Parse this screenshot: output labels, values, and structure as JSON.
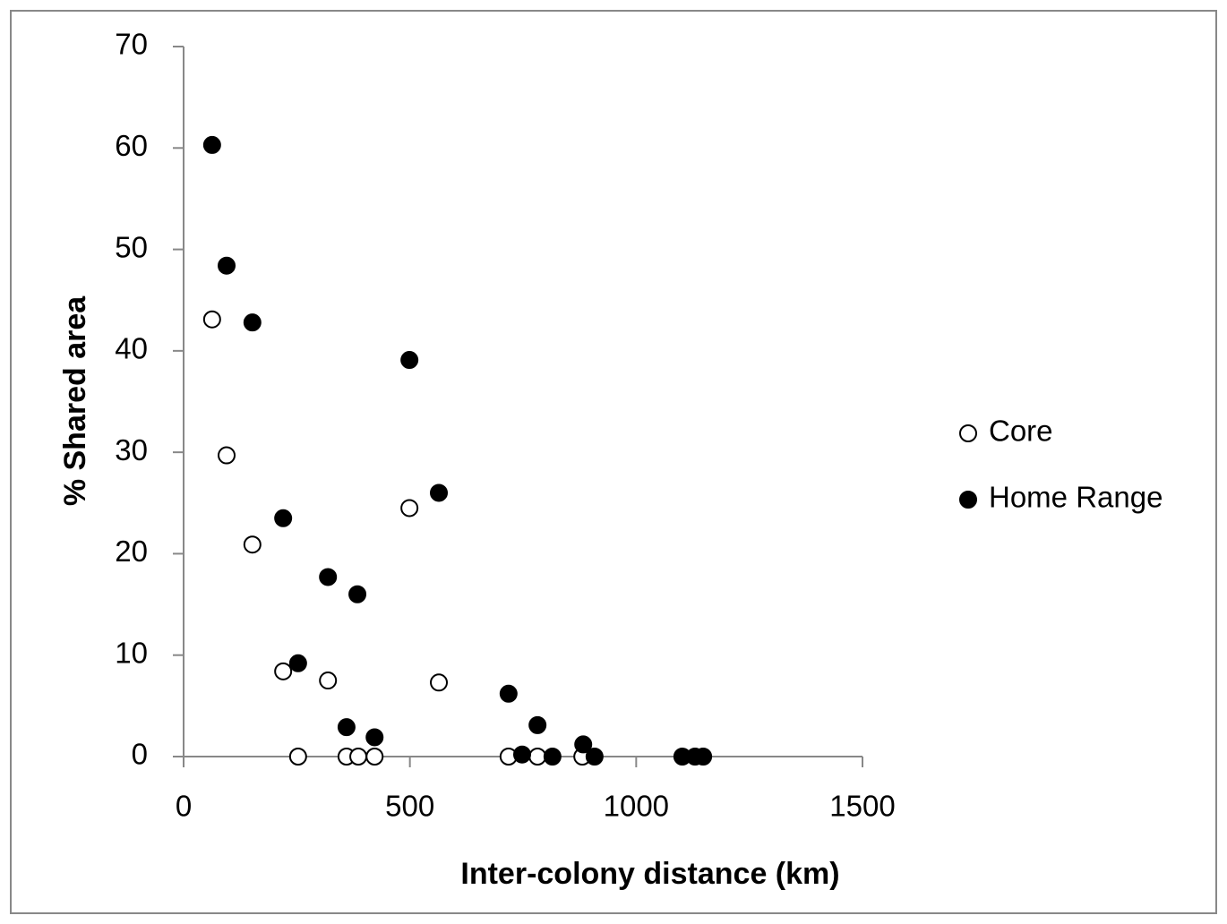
{
  "chart_data": {
    "type": "scatter",
    "x_label": "Inter-colony distance (km)",
    "y_label": "% Shared area",
    "xlim": [
      0,
      1500
    ],
    "xticks": [
      0,
      500,
      1000,
      1500
    ],
    "ylim": [
      0,
      70
    ],
    "yticks": [
      0,
      10,
      20,
      30,
      40,
      50,
      60,
      70
    ],
    "legend": "right",
    "series": [
      {
        "name": "Core",
        "color": "#ffffff",
        "x": [
          63,
          95,
          152,
          220,
          253,
          319,
          360,
          386,
          422,
          499,
          564,
          718,
          782,
          881
        ],
        "values": [
          43.1,
          29.7,
          20.9,
          8.4,
          0,
          7.5,
          0,
          0,
          0,
          24.5,
          7.3,
          0,
          0,
          0
        ]
      },
      {
        "name": "Home Range",
        "color": "#000000",
        "x": [
          63,
          95,
          152,
          220,
          253,
          319,
          360,
          384,
          422,
          499,
          564,
          718,
          748,
          782,
          815,
          883,
          908,
          1102,
          1130,
          1148
        ],
        "values": [
          60.3,
          48.4,
          42.8,
          23.5,
          9.2,
          17.7,
          2.9,
          16.0,
          1.9,
          39.1,
          26.0,
          6.2,
          0.2,
          3.1,
          0,
          1.2,
          0,
          0,
          0,
          0
        ]
      }
    ]
  }
}
